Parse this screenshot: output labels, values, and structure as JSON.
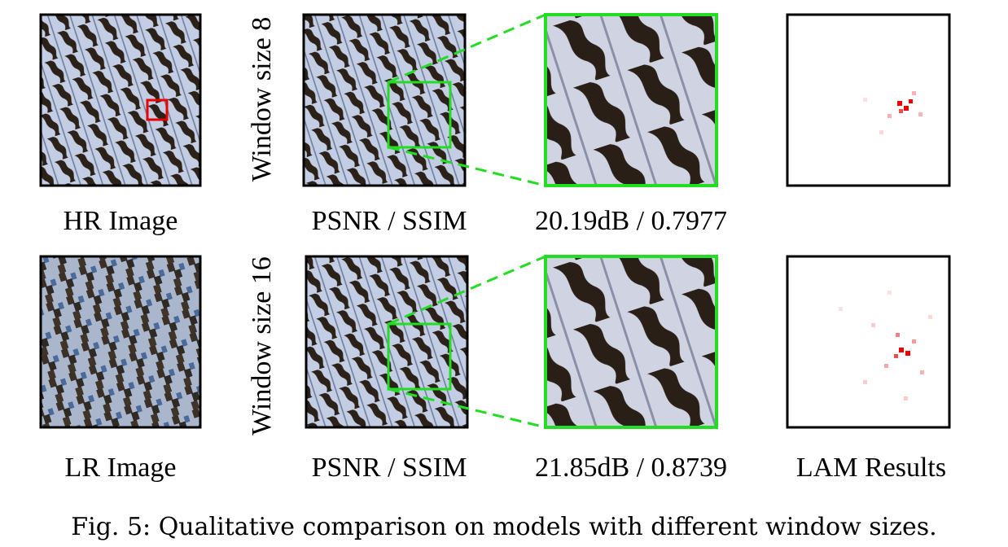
{
  "rows": [
    {
      "side_label": "Window size 8",
      "left_label": "HR Image",
      "metric_label": "PSNR / SSIM",
      "metric_value": "20.19dB / 0.7977"
    },
    {
      "side_label": "Window size 16",
      "left_label": "LR Image",
      "metric_label": "PSNR / SSIM",
      "metric_value": "21.85dB / 0.8739",
      "right_label": "LAM Results"
    }
  ],
  "caption": "Fig. 5: Qualitative comparison on models with different window sizes."
}
